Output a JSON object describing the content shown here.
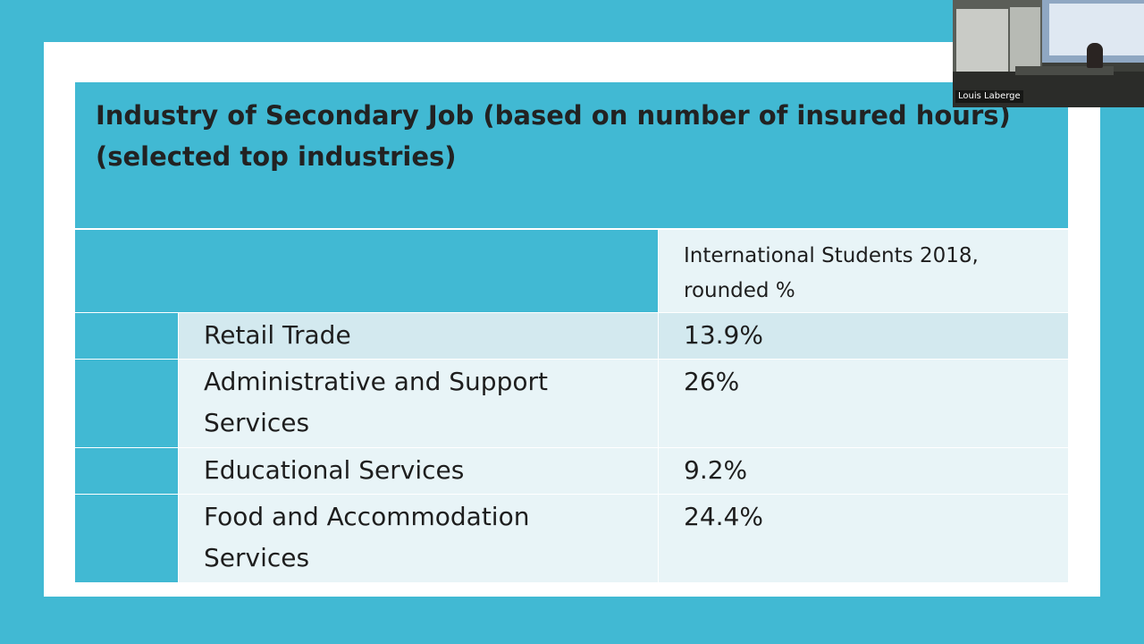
{
  "slide": {
    "title": "Industry of Secondary Job (based on number of insured hours) (selected top industries)"
  },
  "table": {
    "header": "International Students 2018, rounded %",
    "rows": [
      {
        "industry": "Retail Trade",
        "value": "13.9%"
      },
      {
        "industry": "Administrative and Support Services",
        "value": "26%"
      },
      {
        "industry": "Educational Services",
        "value": "9.2%"
      },
      {
        "industry": "Food and Accommodation Services",
        "value": "24.4%"
      }
    ]
  },
  "webcam": {
    "participant_name": "Louis Laberge"
  }
}
